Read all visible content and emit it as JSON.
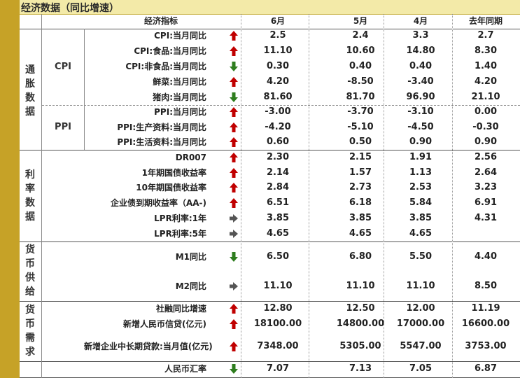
{
  "title": "经济数据（同比增速）",
  "headers": {
    "indicator": "经济指标",
    "col1": "6月",
    "col2": "5月",
    "col3": "4月",
    "col4": "去年同期"
  },
  "categories": [
    {
      "label": "通胀数据",
      "chars": [
        "通",
        "胀",
        "数",
        "据"
      ]
    },
    {
      "label": "利率数据",
      "chars": [
        "利",
        "率",
        "数",
        "据"
      ]
    },
    {
      "label": "货币供给",
      "chars": [
        "货",
        "币",
        "供",
        "给"
      ]
    },
    {
      "label": "货币需求",
      "chars": [
        "货",
        "币",
        "需",
        "求"
      ]
    }
  ],
  "subgroups": {
    "cpi": "CPI",
    "ppi": "PPI"
  },
  "rows": [
    {
      "label": "CPI:当月同比",
      "arrow": "up",
      "v": [
        "2.5",
        "2.4",
        "3.3",
        "2.7"
      ]
    },
    {
      "label": "CPI:食品:当月同比",
      "arrow": "up",
      "v": [
        "11.10",
        "10.60",
        "14.80",
        "8.30"
      ]
    },
    {
      "label": "CPI:非食品:当月同比",
      "arrow": "down",
      "v": [
        "0.30",
        "0.40",
        "0.40",
        "1.40"
      ]
    },
    {
      "label": "鲜菜:当月同比",
      "arrow": "up",
      "v": [
        "4.20",
        "-8.50",
        "-3.40",
        "4.20"
      ]
    },
    {
      "label": "猪肉:当月同比",
      "arrow": "down",
      "v": [
        "81.60",
        "81.70",
        "96.90",
        "21.10"
      ]
    },
    {
      "label": "PPI:当月同比",
      "arrow": "up",
      "v": [
        "-3.00",
        "-3.70",
        "-3.10",
        "0.00"
      ]
    },
    {
      "label": "PPI:生产资料:当月同比",
      "arrow": "up",
      "v": [
        "-4.20",
        "-5.10",
        "-4.50",
        "-0.30"
      ]
    },
    {
      "label": "PPI:生活资料:当月同比",
      "arrow": "up",
      "v": [
        "0.60",
        "0.50",
        "0.90",
        "0.90"
      ]
    },
    {
      "label": "DR007",
      "arrow": "up",
      "v": [
        "2.30",
        "2.15",
        "1.91",
        "2.56"
      ]
    },
    {
      "label": "1年期国债收益率",
      "arrow": "up",
      "v": [
        "2.14",
        "1.57",
        "1.13",
        "2.64"
      ]
    },
    {
      "label": "10年期国债收益率",
      "arrow": "up",
      "v": [
        "2.84",
        "2.73",
        "2.53",
        "3.23"
      ]
    },
    {
      "label": "企业债到期收益率（AA-)",
      "arrow": "up",
      "v": [
        "6.51",
        "6.18",
        "5.84",
        "6.91"
      ]
    },
    {
      "label": "LPR利率:1年",
      "arrow": "right",
      "v": [
        "3.85",
        "3.85",
        "3.85",
        "4.31"
      ]
    },
    {
      "label": "LPR利率:5年",
      "arrow": "right",
      "v": [
        "4.65",
        "4.65",
        "4.65",
        ""
      ]
    },
    {
      "label": "M1同比",
      "arrow": "down",
      "v": [
        "6.50",
        "6.80",
        "5.50",
        "4.40"
      ]
    },
    {
      "label": "M2同比",
      "arrow": "right",
      "v": [
        "11.10",
        "11.10",
        "11.10",
        "8.50"
      ]
    },
    {
      "label": "社融同比增速",
      "arrow": "up",
      "v": [
        "12.80",
        "12.50",
        "12.00",
        "11.19"
      ]
    },
    {
      "label": "新增人民币信贷(亿元)",
      "arrow": "up",
      "v": [
        "18100.00",
        "14800.00",
        "17000.00",
        "16600.00"
      ]
    },
    {
      "label": "新增企业中长期贷款:当月值(亿元)",
      "arrow": "up",
      "v": [
        "7348.00",
        "5305.00",
        "5547.00",
        "3753.00"
      ]
    },
    {
      "label": "人民币汇率",
      "arrow": "down",
      "v": [
        "7.07",
        "7.13",
        "7.05",
        "6.87"
      ]
    }
  ],
  "colors": {
    "up": "#c00000",
    "down": "#2e7d1e",
    "right": "#555555",
    "gold": "#c6a227"
  }
}
